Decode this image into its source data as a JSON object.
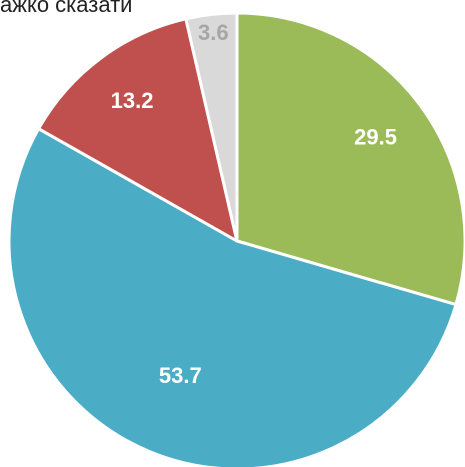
{
  "chart_data": {
    "type": "pie",
    "title": "ажко сказати",
    "slices": [
      {
        "label": "29.5",
        "value": 29.5,
        "color": "#9bbb59",
        "label_color": "#ffffff"
      },
      {
        "label": "53.7",
        "value": 53.7,
        "color": "#4bacc6",
        "label_color": "#ffffff"
      },
      {
        "label": "13.2",
        "value": 13.2,
        "color": "#c0504d",
        "label_color": "#ffffff"
      },
      {
        "label": "3.6",
        "value": 3.6,
        "color": "#d9d9d9",
        "label_color": "#a6a6a6"
      }
    ],
    "start_angle_deg": 0,
    "direction": "clockwise",
    "legend": "none"
  }
}
